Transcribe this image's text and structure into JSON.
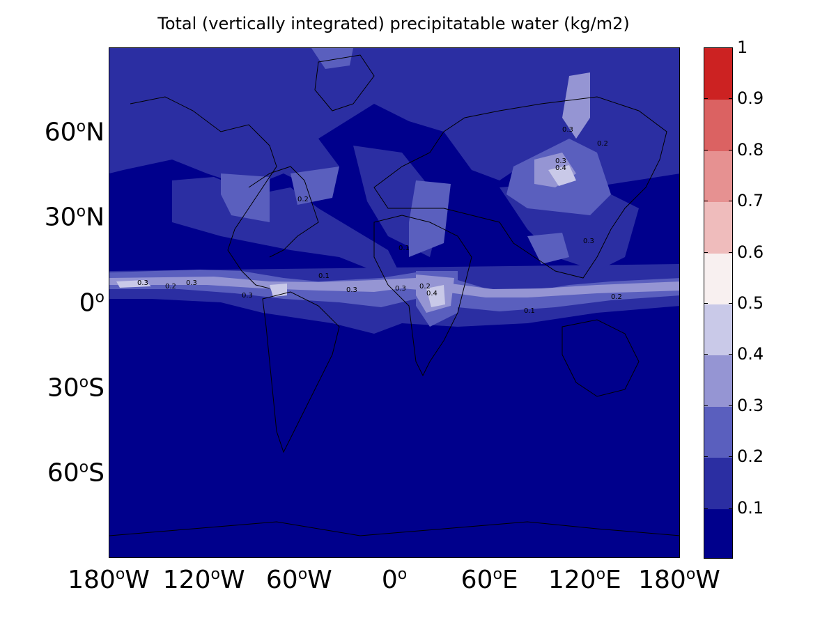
{
  "title": "Total (vertically integrated) precipitatable water (kg/m2)",
  "map": {
    "projection": "equirectangular",
    "x_range": [
      -180,
      180
    ],
    "y_range": [
      -90,
      90
    ],
    "lat_labels": [
      {
        "value": 60,
        "deg": "60",
        "hemi": "N"
      },
      {
        "value": 30,
        "deg": "30",
        "hemi": "N"
      },
      {
        "value": 0,
        "deg": "0",
        "hemi": ""
      },
      {
        "value": -30,
        "deg": "30",
        "hemi": "S"
      },
      {
        "value": -60,
        "deg": "60",
        "hemi": "S"
      }
    ],
    "lon_labels": [
      {
        "value": -180,
        "deg": "180",
        "hemi": "W"
      },
      {
        "value": -120,
        "deg": "120",
        "hemi": "W"
      },
      {
        "value": -60,
        "deg": "60",
        "hemi": "W"
      },
      {
        "value": 0,
        "deg": "0",
        "hemi": ""
      },
      {
        "value": 60,
        "deg": "60",
        "hemi": "E"
      },
      {
        "value": 120,
        "deg": "120",
        "hemi": "E"
      },
      {
        "value": 180,
        "deg": "180",
        "hemi": "W"
      }
    ],
    "contour_labels": [
      "0.1",
      "0.2",
      "0.3",
      "0.4"
    ]
  },
  "colorbar": {
    "levels": [
      "0.1",
      "0.2",
      "0.3",
      "0.4",
      "0.5",
      "0.6",
      "0.7",
      "0.8",
      "0.9",
      "1"
    ],
    "colors": [
      "#00008c",
      "#2b2ea2",
      "#5a5fbe",
      "#9595d3",
      "#c9c9e8",
      "#f8f0f0",
      "#efbcbc",
      "#e69191",
      "#db6262",
      "#cc2222"
    ]
  },
  "colors": {
    "background_field": "#00008c",
    "band_01": "#2b2ea2",
    "band_02": "#5a5fbe",
    "band_03": "#9595d3",
    "band_04": "#c9c9e8"
  }
}
